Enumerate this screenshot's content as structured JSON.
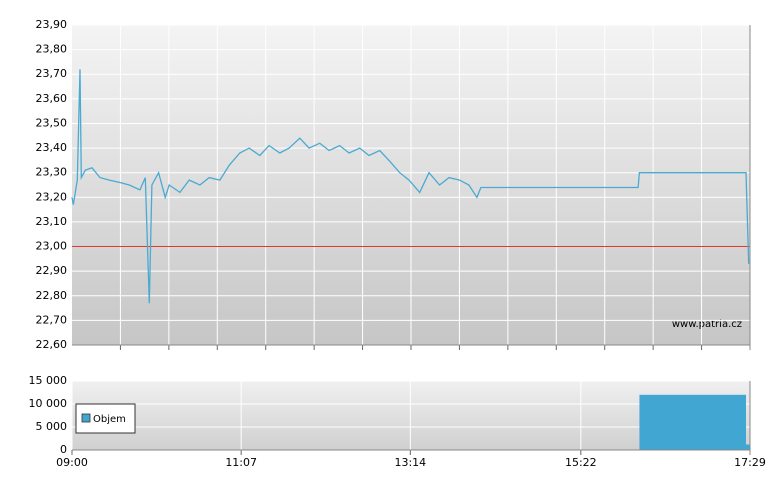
{
  "chart_data": [
    {
      "type": "line",
      "annotation": "www.patria.cz",
      "color": "#4aaad2",
      "ref_line": 23.0,
      "ref_color": "#e03a2a",
      "xlim": [
        "09:00",
        "17:29"
      ],
      "ylim": [
        22.6,
        23.9
      ],
      "yticks": [
        {
          "value": 22.6,
          "label": "22,60"
        },
        {
          "value": 22.7,
          "label": "22,70"
        },
        {
          "value": 22.8,
          "label": "22,80"
        },
        {
          "value": 22.9,
          "label": "22,90"
        },
        {
          "value": 23.0,
          "label": "23,00"
        },
        {
          "value": 23.1,
          "label": "23,10"
        },
        {
          "value": 23.2,
          "label": "23,20"
        },
        {
          "value": 23.3,
          "label": "23,30"
        },
        {
          "value": 23.4,
          "label": "23,40"
        },
        {
          "value": 23.5,
          "label": "23,50"
        },
        {
          "value": 23.6,
          "label": "23,60"
        },
        {
          "value": 23.7,
          "label": "23,70"
        },
        {
          "value": 23.8,
          "label": "23,80"
        },
        {
          "value": 23.9,
          "label": "23,90"
        }
      ],
      "x": [
        "09:00",
        "09:01",
        "09:04",
        "09:06",
        "09:07",
        "09:10",
        "09:15",
        "09:21",
        "09:28",
        "09:36",
        "09:43",
        "09:51",
        "09:55",
        "09:58",
        "10:00",
        "10:05",
        "10:10",
        "10:13",
        "10:21",
        "10:28",
        "10:36",
        "10:43",
        "10:51",
        "10:58",
        "11:06",
        "11:13",
        "11:21",
        "11:28",
        "11:36",
        "11:43",
        "11:51",
        "11:58",
        "12:06",
        "12:13",
        "12:21",
        "12:28",
        "12:36",
        "12:43",
        "12:51",
        "12:58",
        "13:06",
        "13:13",
        "13:21",
        "13:28",
        "13:36",
        "13:43",
        "13:51",
        "13:58",
        "14:04",
        "14:07",
        "16:05",
        "16:06",
        "17:26",
        "17:28"
      ],
      "values": [
        23.2,
        23.17,
        23.27,
        23.72,
        23.28,
        23.31,
        23.32,
        23.28,
        23.27,
        23.26,
        23.25,
        23.23,
        23.28,
        22.77,
        23.25,
        23.3,
        23.2,
        23.25,
        23.22,
        23.27,
        23.25,
        23.28,
        23.27,
        23.33,
        23.38,
        23.4,
        23.37,
        23.41,
        23.38,
        23.4,
        23.44,
        23.4,
        23.42,
        23.39,
        23.41,
        23.38,
        23.4,
        23.37,
        23.39,
        23.35,
        23.3,
        23.27,
        23.22,
        23.3,
        23.25,
        23.28,
        23.27,
        23.25,
        23.2,
        23.24,
        23.24,
        23.3,
        23.3,
        22.93
      ]
    },
    {
      "type": "bar",
      "xlim": [
        "09:00",
        "17:29"
      ],
      "xticks": [
        "09:00",
        "11:07",
        "13:14",
        "15:22",
        "17:29"
      ],
      "ylim": [
        0,
        15000
      ],
      "yticks": [
        0,
        {
          "value": 5000,
          "label": "5 000"
        },
        {
          "value": 10000,
          "label": "10 000"
        },
        {
          "value": 15000,
          "label": "15 000"
        }
      ],
      "series": [
        {
          "name": "Objem",
          "color": "#42a6d3",
          "x": [
            "16:06",
            "17:26"
          ],
          "values": [
            12000,
            1200
          ]
        }
      ]
    }
  ]
}
